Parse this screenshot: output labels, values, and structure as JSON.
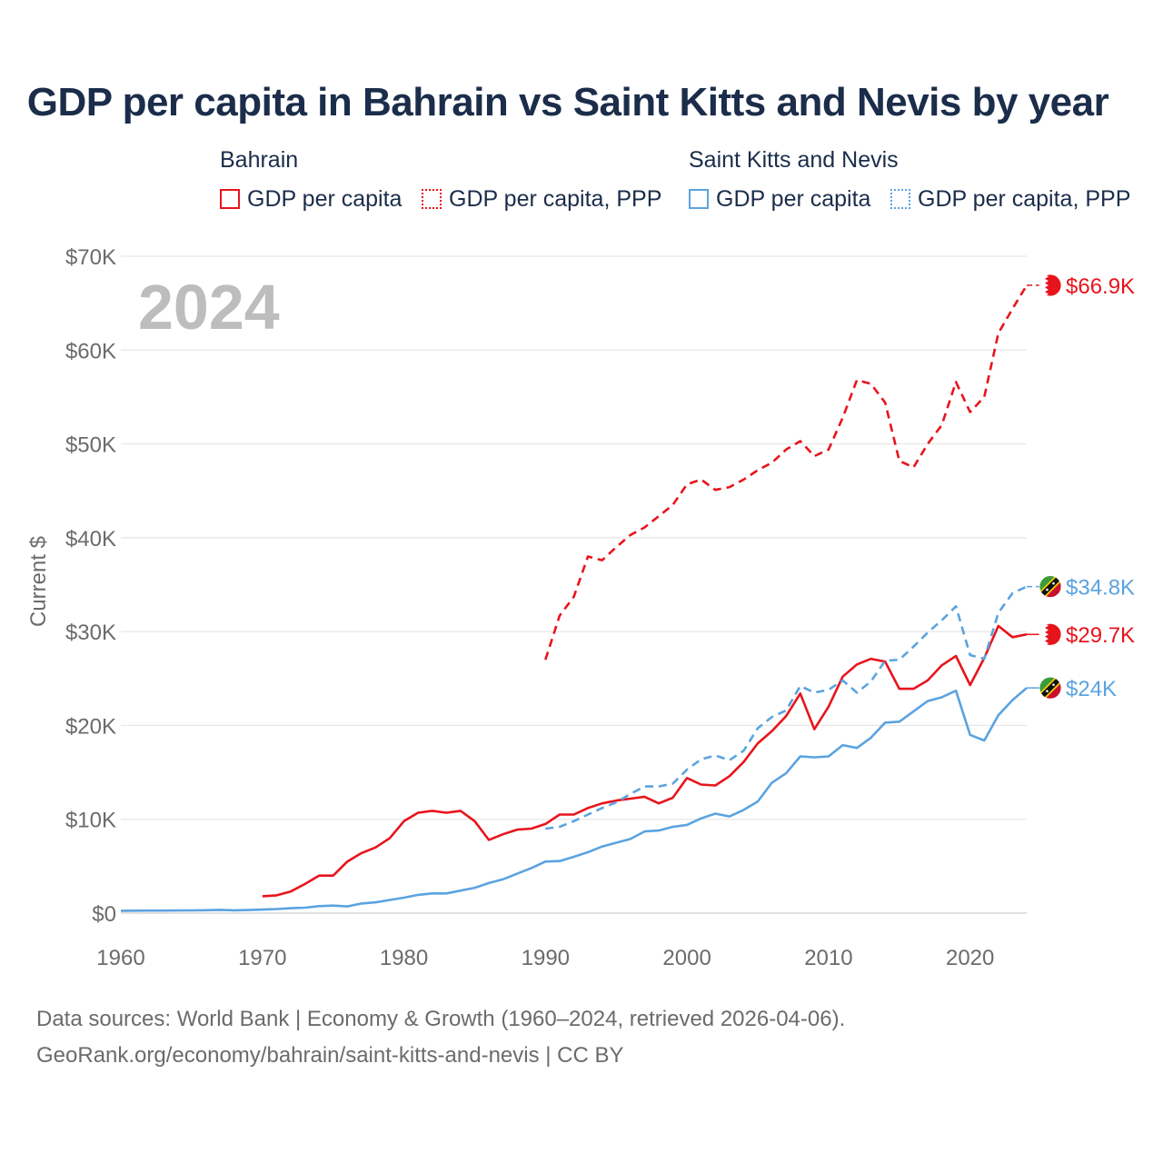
{
  "title": "GDP per capita in Bahrain vs Saint Kitts and Nevis by year",
  "legend": {
    "groups": [
      {
        "country": "Bahrain",
        "color": "#e8141c",
        "items": [
          {
            "label": "GDP per capita",
            "style": "solid"
          },
          {
            "label": "GDP per capita, PPP",
            "style": "dashed"
          }
        ]
      },
      {
        "country": "Saint Kitts and Nevis",
        "color": "#5ba3e0",
        "items": [
          {
            "label": "GDP per capita",
            "style": "solid"
          },
          {
            "label": "GDP per capita, PPP",
            "style": "dashed"
          }
        ]
      }
    ]
  },
  "footer": {
    "line1": "Data sources: World Bank | Economy & Growth (1960–2024, retrieved 2026-04-06).",
    "line2": "GeoRank.org/economy/bahrain/saint-kitts-and-nevis | CC BY"
  },
  "chart_data": {
    "type": "line",
    "year_label": "2024",
    "ylabel": "Current $",
    "xlabel": "",
    "xlim": [
      1960,
      2024
    ],
    "ylim": [
      0,
      70000
    ],
    "x_ticks": [
      1960,
      1970,
      1980,
      1990,
      2000,
      2010,
      2020
    ],
    "y_ticks": [
      {
        "value": 0,
        "label": "$0"
      },
      {
        "value": 10000,
        "label": "$10K"
      },
      {
        "value": 20000,
        "label": "$20K"
      },
      {
        "value": 30000,
        "label": "$30K"
      },
      {
        "value": 40000,
        "label": "$40K"
      },
      {
        "value": 50000,
        "label": "$50K"
      },
      {
        "value": 60000,
        "label": "$60K"
      },
      {
        "value": 70000,
        "label": "$70K"
      }
    ],
    "grid": true,
    "series": [
      {
        "name": "Bahrain GDP per capita, PPP",
        "country": "Bahrain",
        "color": "#e8141c",
        "dash": true,
        "end_label": "$66.9K",
        "start_year": 1990,
        "values": [
          27000,
          31700,
          33700,
          38000,
          37600,
          39000,
          40300,
          41100,
          42300,
          43500,
          45700,
          46200,
          45100,
          45400,
          46200,
          47200,
          48000,
          49400,
          50300,
          48700,
          49400,
          52800,
          56800,
          56400,
          54400,
          48200,
          47500,
          50000,
          52000,
          56600,
          53400,
          55000,
          61800,
          64400,
          66900
        ]
      },
      {
        "name": "Bahrain GDP per capita",
        "country": "Bahrain",
        "color": "#e8141c",
        "dash": false,
        "end_label": "$29.7K",
        "start_year": 1970,
        "values": [
          1800,
          1900,
          2300,
          3100,
          4000,
          4000,
          5500,
          6400,
          7000,
          8000,
          9800,
          10700,
          10900,
          10700,
          10900,
          9800,
          7800,
          8400,
          8900,
          9000,
          9500,
          10500,
          10500,
          11200,
          11700,
          12000,
          12200,
          12400,
          11700,
          12300,
          14400,
          13700,
          13600,
          14600,
          16100,
          18100,
          19400,
          21000,
          23400,
          19600,
          22000,
          25200,
          26500,
          27100,
          26800,
          23900,
          23900,
          24800,
          26400,
          27400,
          24300,
          27200,
          30600,
          29400,
          29700
        ]
      },
      {
        "name": "Saint Kitts and Nevis GDP per capita, PPP",
        "country": "Saint Kitts and Nevis",
        "color": "#5ba3e0",
        "dash": true,
        "end_label": "$34.8K",
        "start_year": 1990,
        "values": [
          9000,
          9200,
          9800,
          10500,
          11200,
          11800,
          12700,
          13500,
          13500,
          13800,
          15300,
          16400,
          16800,
          16300,
          17300,
          19700,
          20900,
          21600,
          24200,
          23500,
          23800,
          24800,
          23500,
          24700,
          26900,
          27000,
          28400,
          29900,
          31200,
          32700,
          27500,
          27100,
          32000,
          34100,
          34800
        ]
      },
      {
        "name": "Saint Kitts and Nevis GDP per capita",
        "country": "Saint Kitts and Nevis",
        "color": "#5ba3e0",
        "dash": false,
        "end_label": "$24K",
        "start_year": 1960,
        "values": [
          250,
          260,
          270,
          270,
          280,
          290,
          310,
          350,
          300,
          330,
          380,
          440,
          520,
          580,
          750,
          800,
          720,
          1030,
          1150,
          1400,
          1650,
          1950,
          2100,
          2100,
          2400,
          2700,
          3200,
          3600,
          4200,
          4800,
          5500,
          5550,
          6000,
          6500,
          7100,
          7500,
          7900,
          8700,
          8800,
          9200,
          9400,
          10100,
          10600,
          10300,
          11000,
          11900,
          13900,
          14900,
          16700,
          16600,
          16700,
          17900,
          17600,
          18700,
          20300,
          20400,
          21500,
          22600,
          23000,
          23700,
          19000,
          18400,
          21100,
          22700,
          24000
        ]
      }
    ]
  }
}
